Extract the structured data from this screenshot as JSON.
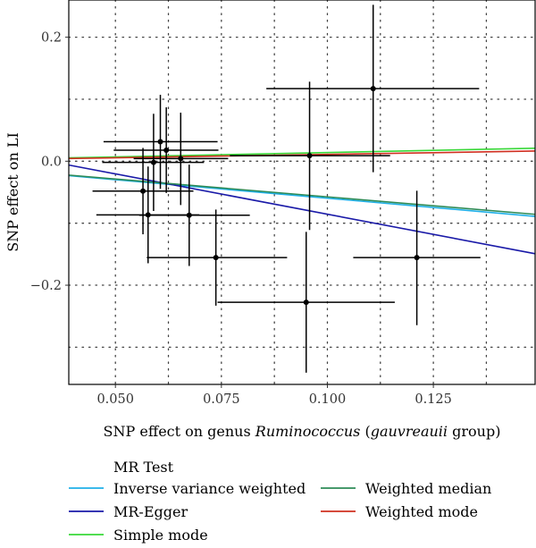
{
  "chart_data": {
    "type": "scatter",
    "xlabel_parts": [
      {
        "text": "SNP effect on genus ",
        "italic": false
      },
      {
        "text": "Ruminococcus",
        "italic": true
      },
      {
        "text": " (",
        "italic": false
      },
      {
        "text": "gauvreauii",
        "italic": true
      },
      {
        "text": " group)",
        "italic": false
      }
    ],
    "ylabel": "SNP effect on LI",
    "xlim": [
      0.039,
      0.149
    ],
    "ylim": [
      -0.36,
      0.26
    ],
    "x_ticks": [
      {
        "value": 0.05,
        "label": "0.050"
      },
      {
        "value": 0.075,
        "label": "0.075"
      },
      {
        "value": 0.1,
        "label": "0.100"
      },
      {
        "value": 0.125,
        "label": "0.125"
      }
    ],
    "y_ticks": [
      {
        "value": 0.2,
        "label": "0.2"
      },
      {
        "value": 0.0,
        "label": "0.0"
      },
      {
        "value": -0.2,
        "label": "−0.2"
      }
    ],
    "x_minor_grid": [
      0.0625,
      0.0875,
      0.1125,
      0.1375
    ],
    "y_minor_grid": [
      0.1,
      -0.1,
      -0.3
    ],
    "grid": true,
    "points": [
      {
        "x": 0.1108,
        "y": 0.1171,
        "x_lo": 0.0856,
        "x_hi": 0.1358,
        "y_lo": -0.0177,
        "y_hi": 0.2523
      },
      {
        "x": 0.0606,
        "y": 0.0315,
        "x_lo": 0.0472,
        "x_hi": 0.0741,
        "y_lo": -0.0446,
        "y_hi": 0.1071
      },
      {
        "x": 0.062,
        "y": 0.0178,
        "x_lo": 0.0496,
        "x_hi": 0.0743,
        "y_lo": -0.0512,
        "y_hi": 0.0869
      },
      {
        "x": 0.059,
        "y": -0.0019,
        "x_lo": 0.0469,
        "x_hi": 0.0709,
        "y_lo": -0.0803,
        "y_hi": 0.0765
      },
      {
        "x": 0.0654,
        "y": 0.0043,
        "x_lo": 0.0543,
        "x_hi": 0.0766,
        "y_lo": -0.0707,
        "y_hi": 0.0783
      },
      {
        "x": 0.0958,
        "y": 0.0089,
        "x_lo": 0.077,
        "x_hi": 0.1148,
        "y_lo": -0.111,
        "y_hi": 0.1282
      },
      {
        "x": 0.0565,
        "y": -0.0482,
        "x_lo": 0.0446,
        "x_hi": 0.0684,
        "y_lo": -0.1179,
        "y_hi": 0.0214
      },
      {
        "x": 0.0577,
        "y": -0.0866,
        "x_lo": 0.0455,
        "x_hi": 0.0698,
        "y_lo": -0.1646,
        "y_hi": -0.0086
      },
      {
        "x": 0.0674,
        "y": -0.0872,
        "x_lo": 0.0556,
        "x_hi": 0.0817,
        "y_lo": -0.169,
        "y_hi": -0.0055
      },
      {
        "x": 0.0737,
        "y": -0.1555,
        "x_lo": 0.0574,
        "x_hi": 0.0905,
        "y_lo": -0.233,
        "y_hi": -0.078
      },
      {
        "x": 0.1211,
        "y": -0.1555,
        "x_lo": 0.1061,
        "x_hi": 0.1361,
        "y_lo": -0.2645,
        "y_hi": -0.0477
      },
      {
        "x": 0.095,
        "y": -0.2275,
        "x_lo": 0.0741,
        "x_hi": 0.1159,
        "y_lo": -0.341,
        "y_hi": -0.114
      }
    ],
    "lines": [
      {
        "name": "Inverse variance weighted",
        "color": "#1fb0e8",
        "slope": -0.597,
        "intercept": 0.0
      },
      {
        "name": "MR-Egger",
        "color": "#1a1aa8",
        "slope": -1.3,
        "intercept": 0.0445
      },
      {
        "name": "Simple mode",
        "color": "#38d838",
        "slope": 0.14,
        "intercept": 0.0
      },
      {
        "name": "Weighted median",
        "color": "#2e8b57",
        "slope": -0.575,
        "intercept": 0.0
      },
      {
        "name": "Weighted mode",
        "color": "#d03020",
        "slope": 0.11,
        "intercept": 0.0
      }
    ],
    "legend": {
      "title": "MR Test",
      "placement": "bottom",
      "columns": [
        [
          "Inverse variance weighted",
          "MR-Egger",
          "Simple mode"
        ],
        [
          "Weighted median",
          "Weighted mode"
        ]
      ]
    }
  }
}
